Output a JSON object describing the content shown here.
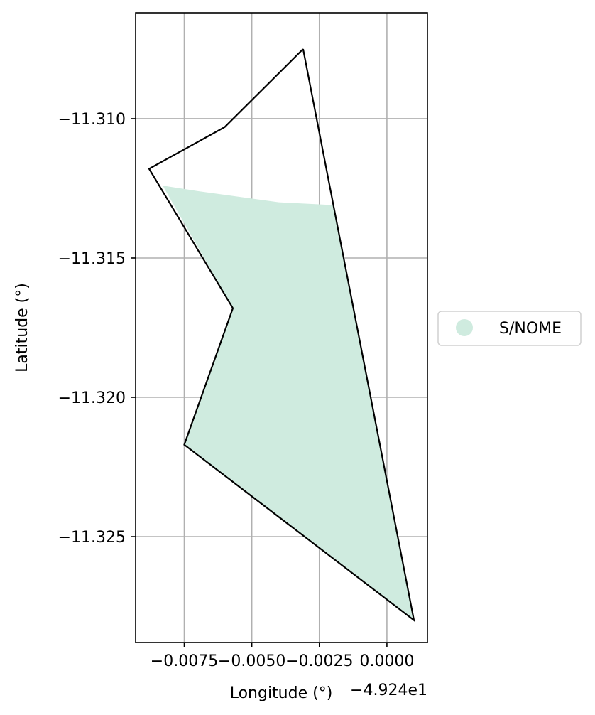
{
  "chart_data": {
    "type": "area",
    "title": "",
    "xlabel": "Longitude (°)",
    "ylabel": "Latitude (°)",
    "x_offset_label": "−4.924e1",
    "xlim": [
      -0.0093,
      0.0015
    ],
    "ylim": [
      -11.3288,
      -11.3062
    ],
    "x_ticks": [
      -0.0075,
      -0.005,
      -0.0025,
      0.0
    ],
    "x_tick_labels": [
      "−0.0075",
      "−0.0050",
      "−0.0025",
      "0.0000"
    ],
    "y_ticks": [
      -11.31,
      -11.315,
      -11.32,
      -11.325
    ],
    "y_tick_labels": [
      "−11.310",
      "−11.315",
      "−11.320",
      "−11.325"
    ],
    "grid": true,
    "legend_position": "center-right outside",
    "series": [
      {
        "name": "S/NOME",
        "color": "#cfebdf",
        "outline_color": "#000000",
        "outline": [
          [
            -0.0031,
            -11.3075
          ],
          [
            -0.006,
            -11.3103
          ],
          [
            -0.0088,
            -11.3118
          ],
          [
            -0.0057,
            -11.3168
          ],
          [
            -0.0075,
            -11.3217
          ],
          [
            0.001,
            -11.328
          ],
          [
            -0.0031,
            -11.3075
          ]
        ],
        "fill": [
          [
            -0.0083,
            -11.3124
          ],
          [
            -0.007,
            -11.3126
          ],
          [
            -0.0055,
            -11.3128
          ],
          [
            -0.004,
            -11.313
          ],
          [
            -0.002,
            -11.3131
          ],
          [
            0.001,
            -11.328
          ],
          [
            -0.0075,
            -11.3217
          ],
          [
            -0.0057,
            -11.3168
          ]
        ]
      }
    ]
  }
}
